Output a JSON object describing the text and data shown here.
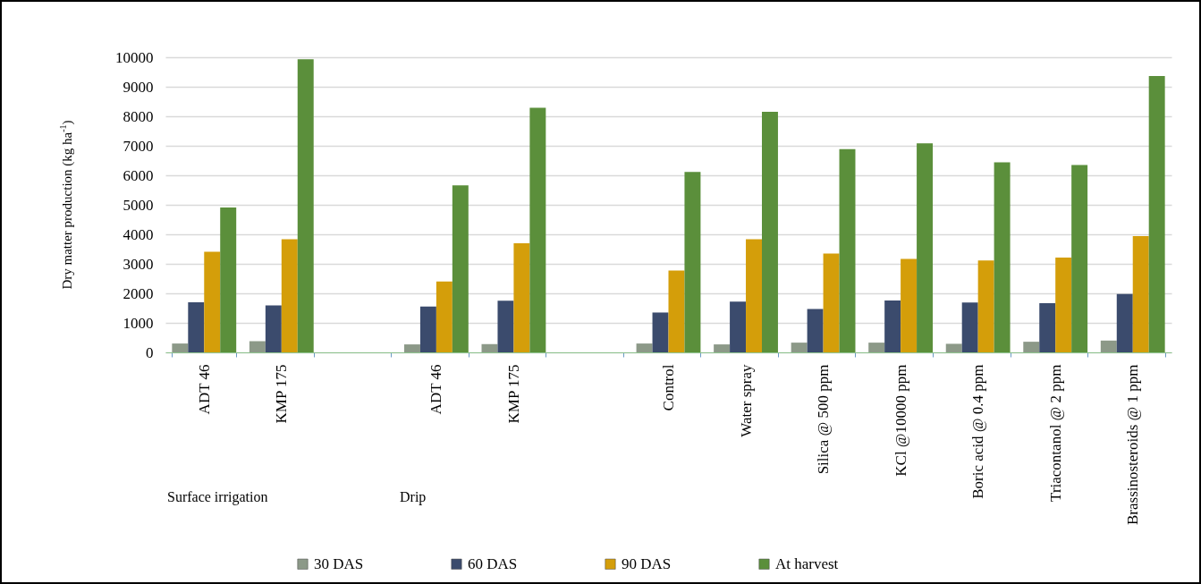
{
  "chart_data": {
    "type": "bar",
    "ylabel": "Dry matter production (kg ha$^{-1}$)",
    "categories": [
      "ADT 46",
      "KMP 175",
      null,
      "ADT 46",
      "KMP 175",
      null,
      "Control",
      "Water spray",
      "Silica @ 500 ppm",
      "KCl @10000 ppm",
      "Boric acid @ 0.4 ppm",
      "Triacontanol @ 2 ppm",
      "Brassinosteroids @ 1 ppm"
    ],
    "series": [
      {
        "name": "30 DAS",
        "color": "#8c9988",
        "values": [
          300,
          380,
          null,
          270,
          280,
          null,
          300,
          270,
          330,
          330,
          290,
          360,
          400
        ]
      },
      {
        "name": "60 DAS",
        "color": "#3b4b6d",
        "values": [
          1700,
          1590,
          null,
          1550,
          1750,
          null,
          1350,
          1720,
          1470,
          1760,
          1690,
          1670,
          1980
        ]
      },
      {
        "name": "90 DAS",
        "color": "#d49e0a",
        "values": [
          3410,
          3830,
          null,
          2400,
          3700,
          null,
          2770,
          3830,
          3350,
          3170,
          3110,
          3210,
          3940
        ]
      },
      {
        "name": "At harvest",
        "color": "#5b8f3b",
        "values": [
          4910,
          9930,
          null,
          5660,
          8290,
          null,
          6110,
          8150,
          6890,
          7080,
          6440,
          6350,
          9360
        ]
      }
    ],
    "ylim": [
      0,
      10000
    ],
    "yticks": [
      0,
      1000,
      2000,
      3000,
      4000,
      5000,
      6000,
      7000,
      8000,
      9000,
      10000
    ],
    "grid": "y",
    "legend": "bottom",
    "annotations": [
      "Surface irrigation",
      "Drip"
    ]
  }
}
